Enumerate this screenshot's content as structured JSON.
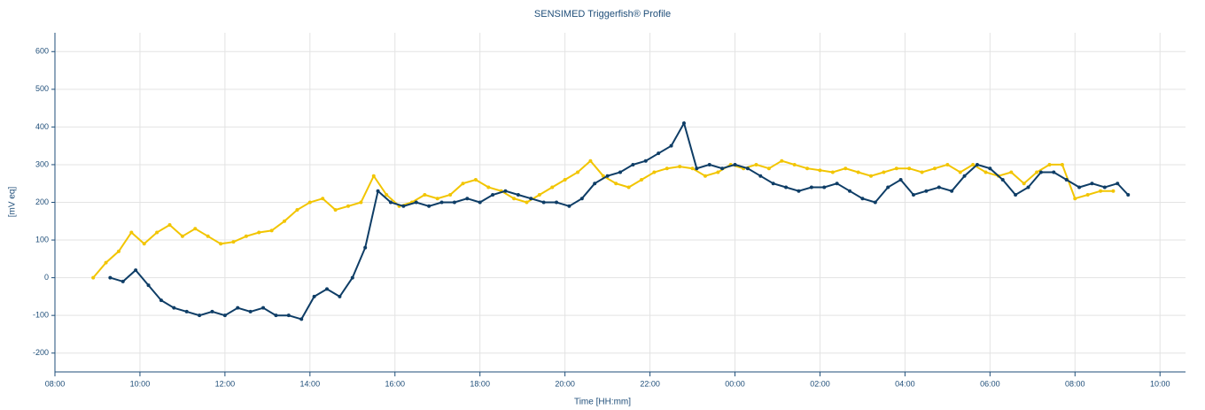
{
  "chart_data": {
    "type": "line",
    "title": "SENSIMED Triggerfish® Profile",
    "x_label": "Time [HH:mm]",
    "y_label": "[mV eq]",
    "xlim": [
      8,
      34.6
    ],
    "ylim": [
      -250,
      650
    ],
    "xticks": [
      {
        "value": 8,
        "label": "08:00"
      },
      {
        "value": 10,
        "label": "10:00"
      },
      {
        "value": 12,
        "label": "12:00"
      },
      {
        "value": 14,
        "label": "14:00"
      },
      {
        "value": 16,
        "label": "16:00"
      },
      {
        "value": 18,
        "label": "18:00"
      },
      {
        "value": 20,
        "label": "20:00"
      },
      {
        "value": 22,
        "label": "22:00"
      },
      {
        "value": 24,
        "label": "00:00"
      },
      {
        "value": 26,
        "label": "02:00"
      },
      {
        "value": 28,
        "label": "04:00"
      },
      {
        "value": 30,
        "label": "06:00"
      },
      {
        "value": 32,
        "label": "08:00"
      },
      {
        "value": 34,
        "label": "10:00"
      }
    ],
    "yticks": [
      -200,
      -100,
      0,
      100,
      200,
      300,
      400,
      500,
      600
    ],
    "grid": true,
    "series": [
      {
        "color": "#f2c500",
        "x": [
          8.9,
          9.2,
          9.5,
          9.8,
          10.1,
          10.4,
          10.7,
          11.0,
          11.3,
          11.6,
          11.9,
          12.2,
          12.5,
          12.8,
          13.1,
          13.4,
          13.7,
          14.0,
          14.3,
          14.6,
          14.9,
          15.2,
          15.5,
          15.8,
          16.1,
          16.4,
          16.7,
          17.0,
          17.3,
          17.6,
          17.9,
          18.2,
          18.5,
          18.8,
          19.1,
          19.4,
          19.7,
          20.0,
          20.3,
          20.6,
          20.9,
          21.2,
          21.5,
          21.8,
          22.1,
          22.4,
          22.7,
          23.0,
          23.3,
          23.6,
          23.9,
          24.2,
          24.5,
          24.8,
          25.1,
          25.4,
          25.7,
          26.0,
          26.3,
          26.6,
          26.9,
          27.2,
          27.5,
          27.8,
          28.1,
          28.4,
          28.7,
          29.0,
          29.3,
          29.6,
          29.9,
          30.2,
          30.5,
          30.8,
          31.1,
          31.4,
          31.7,
          32.0,
          32.3,
          32.6,
          32.9
        ],
        "values": [
          0,
          40,
          70,
          120,
          90,
          120,
          140,
          110,
          130,
          110,
          90,
          95,
          110,
          120,
          125,
          150,
          180,
          200,
          210,
          180,
          190,
          200,
          270,
          220,
          190,
          200,
          220,
          210,
          220,
          250,
          260,
          240,
          230,
          210,
          200,
          220,
          240,
          260,
          280,
          310,
          270,
          250,
          240,
          260,
          280,
          290,
          295,
          290,
          270,
          280,
          300,
          290,
          300,
          290,
          310,
          300,
          290,
          285,
          280,
          290,
          280,
          270,
          280,
          290,
          290,
          280,
          290,
          300,
          280,
          300,
          280,
          270,
          280,
          250,
          280,
          300,
          300,
          210,
          220,
          230,
          230
        ]
      },
      {
        "color": "#0e3d66",
        "x": [
          9.3,
          9.6,
          9.9,
          10.2,
          10.5,
          10.8,
          11.1,
          11.4,
          11.7,
          12.0,
          12.3,
          12.6,
          12.9,
          13.2,
          13.5,
          13.8,
          14.1,
          14.4,
          14.7,
          15.0,
          15.3,
          15.6,
          15.9,
          16.2,
          16.5,
          16.8,
          17.1,
          17.4,
          17.7,
          18.0,
          18.3,
          18.6,
          18.9,
          19.2,
          19.5,
          19.8,
          20.1,
          20.4,
          20.7,
          21.0,
          21.3,
          21.6,
          21.9,
          22.2,
          22.5,
          22.8,
          23.1,
          23.4,
          23.7,
          24.0,
          24.3,
          24.6,
          24.9,
          25.2,
          25.5,
          25.8,
          26.1,
          26.4,
          26.7,
          27.0,
          27.3,
          27.6,
          27.9,
          28.2,
          28.5,
          28.8,
          29.1,
          29.4,
          29.7,
          30.0,
          30.3,
          30.6,
          30.9,
          31.2,
          31.5,
          31.8,
          32.1,
          32.4,
          32.7,
          33.0,
          33.25
        ],
        "values": [
          0,
          -10,
          20,
          -20,
          -60,
          -80,
          -90,
          -100,
          -90,
          -100,
          -80,
          -90,
          -80,
          -100,
          -100,
          -110,
          -50,
          -30,
          -50,
          0,
          80,
          230,
          200,
          190,
          200,
          190,
          200,
          200,
          210,
          200,
          220,
          230,
          220,
          210,
          200,
          200,
          190,
          210,
          250,
          270,
          280,
          300,
          310,
          330,
          350,
          410,
          290,
          300,
          290,
          300,
          290,
          270,
          250,
          240,
          230,
          240,
          240,
          250,
          230,
          210,
          200,
          240,
          260,
          220,
          230,
          240,
          230,
          270,
          300,
          290,
          260,
          220,
          240,
          280,
          280,
          260,
          240,
          250,
          240,
          250,
          220
        ]
      }
    ]
  }
}
